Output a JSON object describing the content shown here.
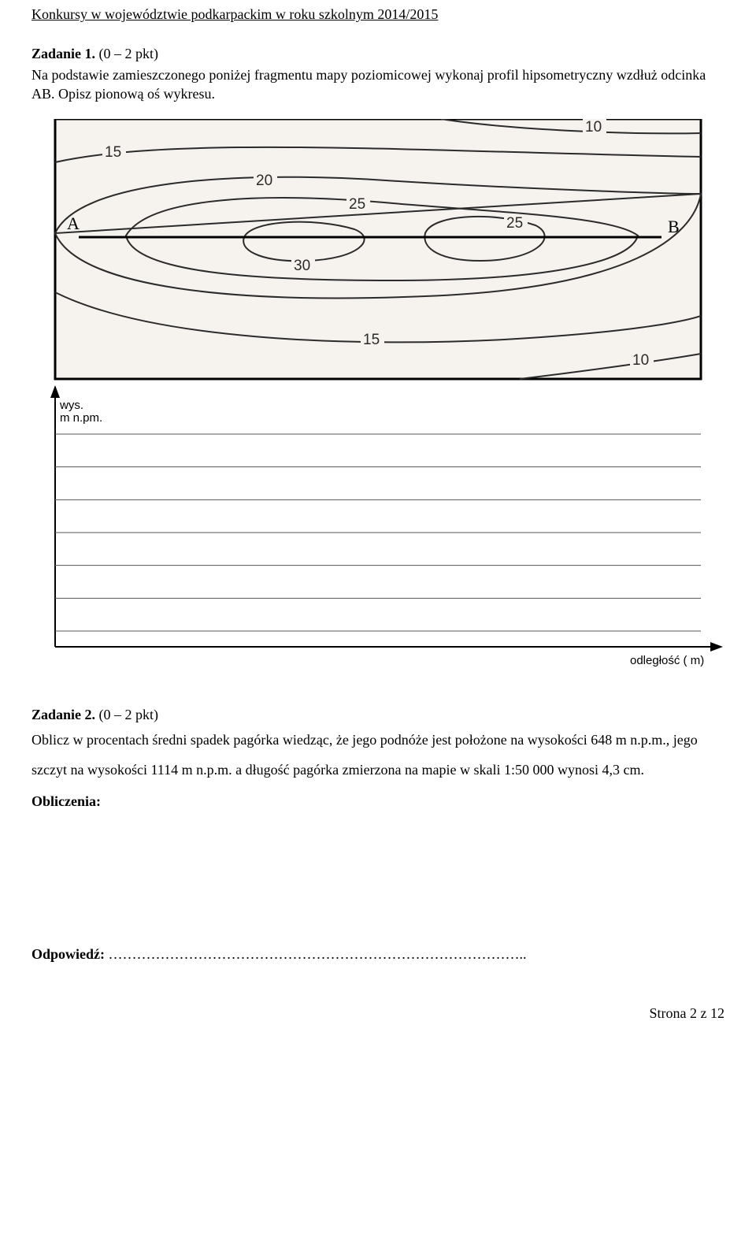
{
  "header": "Konkursy w województwie podkarpackim w roku szkolnym 2014/2015",
  "task1": {
    "title": "Zadanie 1.",
    "points": "(0 – 2 pkt)",
    "text": "Na podstawie zamieszczonego poniżej fragmentu mapy poziomicowej wykonaj profil hipsometryczny wzdłuż odcinka AB. Opisz pionową oś wykresu."
  },
  "map": {
    "labels": {
      "A": "A",
      "B": "B",
      "c10a": "10",
      "c10b": "10",
      "c15a": "15",
      "c15b": "15",
      "c20": "20",
      "c25a": "25",
      "c25b": "25",
      "c30": "30"
    },
    "style": {
      "contour_color": "#2b2b2b",
      "contour_label_color": "#2b2b2b",
      "frame_color": "#000000",
      "background": "#f6f3ee",
      "ab_color": "#000000"
    },
    "axes": {
      "y_label": "wys.\nm n.pm.",
      "x_label": "odległość ( m)"
    }
  },
  "chart": {
    "gridline_color": "#555555",
    "axis_color": "#000000",
    "n_gridlines": 7,
    "arrow_size": 10
  },
  "task2": {
    "title": "Zadanie 2.",
    "points": "(0 – 2 pkt)",
    "text1": "Oblicz w procentach średni spadek pagórka wiedząc, że jego podnóże jest położone na wysokości 648 m n.p.m., jego szczyt na wysokości 1114 m n.p.m. a długość pagórka zmierzona na mapie w skali 1:50 000 wynosi 4,3 cm.",
    "obliczenia": "Obliczenia:"
  },
  "answer_label": "Odpowiedź: ",
  "answer_dots": "……………………………………………………………………………..",
  "footer": "Strona 2 z 12"
}
